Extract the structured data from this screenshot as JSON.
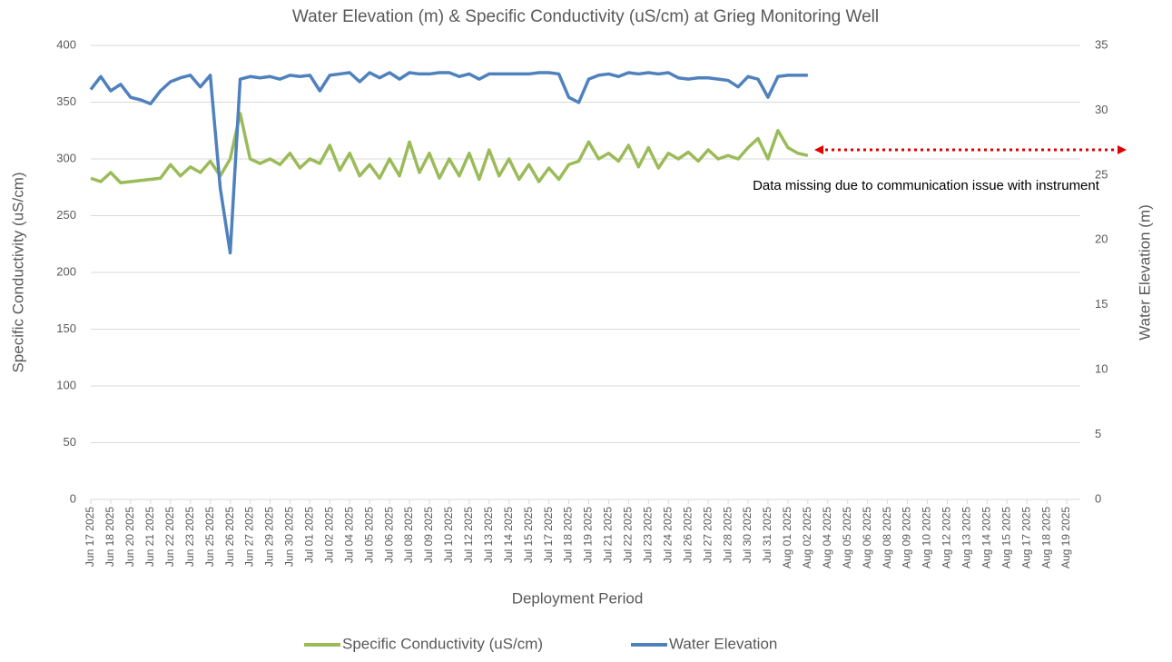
{
  "chart_data": {
    "type": "line",
    "title": "Water Elevation (m) & Specific Conductivity (uS/cm) at Grieg Monitoring Well",
    "x_label": "Deployment Period",
    "y_label": "Specific Conductivity (uS/cm)",
    "y2_label": "Water Elevation (m)",
    "annotation": "Data missing due to communication issue with instrument",
    "categories": [
      "Jun 17 2025",
      null,
      "Jun 18 2025",
      null,
      "Jun 20 2025",
      null,
      "Jun 21 2025",
      null,
      "Jun 22 2025",
      null,
      "Jun 23 2025",
      null,
      "Jun 25 2025",
      null,
      "Jun 26 2025",
      null,
      "Jun 27 2025",
      null,
      "Jun 29 2025",
      null,
      "Jun 30 2025",
      null,
      "Jul 01 2025",
      null,
      "Jul 02 2025",
      null,
      "Jul 04 2025",
      null,
      "Jul 05 2025",
      null,
      "Jul 06 2025",
      null,
      "Jul 08 2025",
      null,
      "Jul 09 2025",
      null,
      "Jul 10 2025",
      null,
      "Jul 12 2025",
      null,
      "Jul 13 2025",
      null,
      "Jul 14 2025",
      null,
      "Jul 15 2025",
      null,
      "Jul 17 2025",
      null,
      "Jul 18 2025",
      null,
      "Jul 19 2025",
      null,
      "Jul 21 2025",
      null,
      "Jul 22 2025",
      null,
      "Jul 23 2025",
      null,
      "Jul 24 2025",
      null,
      "Jul 26 2025",
      null,
      "Jul 27 2025",
      null,
      "Jul 28 2025",
      null,
      "Jul 30 2025",
      null,
      "Jul 31 2025",
      null,
      "Aug 01 2025",
      null,
      "Aug 02 2025",
      null,
      "Aug 04 2025",
      null,
      "Aug 05 2025",
      null,
      "Aug 06 2025",
      null,
      "Aug 08 2025",
      null,
      "Aug 09 2025",
      null,
      "Aug 10 2025",
      null,
      "Aug 12 2025",
      null,
      "Aug 13 2025",
      null,
      "Aug 14 2025",
      null,
      "Aug 15 2025",
      null,
      "Aug 17 2025",
      null,
      "Aug 18 2025",
      null,
      "Aug 19 2025",
      null
    ],
    "series": [
      {
        "name": "Specific Conductivity (uS/cm)",
        "color": "#9bbb59",
        "axis": "y",
        "values": [
          283,
          280,
          288,
          279,
          280,
          281,
          282,
          283,
          295,
          285,
          293,
          288,
          298,
          285,
          300,
          340,
          300,
          296,
          300,
          295,
          305,
          292,
          300,
          296,
          312,
          290,
          305,
          285,
          295,
          283,
          300,
          285,
          315,
          288,
          305,
          283,
          300,
          285,
          305,
          282,
          308,
          285,
          300,
          282,
          295,
          280,
          292,
          282,
          295,
          298,
          315,
          300,
          305,
          298,
          312,
          293,
          310,
          292,
          305,
          300,
          306,
          298,
          308,
          300,
          303,
          300,
          310,
          318,
          300,
          325,
          310,
          305,
          303,
          null,
          null,
          null,
          null,
          null,
          null,
          null,
          null,
          null,
          null,
          null,
          null,
          null,
          null,
          null,
          null,
          null,
          null,
          null,
          null,
          null,
          null,
          null,
          null,
          null,
          null,
          null
        ]
      },
      {
        "name": "Water Elevation",
        "color": "#4f81bd",
        "axis": "y2",
        "values": [
          31.6,
          32.6,
          31.5,
          32.0,
          31.0,
          30.8,
          30.5,
          31.5,
          32.2,
          32.5,
          32.7,
          31.8,
          32.7,
          24,
          19,
          32.4,
          32.6,
          32.5,
          32.6,
          32.4,
          32.7,
          32.6,
          32.7,
          31.5,
          32.7,
          32.8,
          32.9,
          32.2,
          32.9,
          32.5,
          32.9,
          32.4,
          32.9,
          32.8,
          32.8,
          32.9,
          32.9,
          32.6,
          32.8,
          32.4,
          32.8,
          32.8,
          32.8,
          32.8,
          32.8,
          32.9,
          32.9,
          32.8,
          31.0,
          30.6,
          32.4,
          32.7,
          32.8,
          32.6,
          32.9,
          32.8,
          32.9,
          32.8,
          32.9,
          32.5,
          32.4,
          32.5,
          32.5,
          32.4,
          32.3,
          31.8,
          32.6,
          32.4,
          31.0,
          32.6,
          32.7,
          32.7,
          32.7,
          null,
          null,
          null,
          null,
          null,
          null,
          null,
          null,
          null,
          null,
          null,
          null,
          null,
          null,
          null,
          null,
          null,
          null,
          null,
          null,
          null,
          null,
          null,
          null,
          null,
          null,
          null
        ]
      }
    ],
    "ylim": [
      0,
      400
    ],
    "yticks": [
      0,
      50,
      100,
      150,
      200,
      250,
      300,
      350,
      400
    ],
    "y2lim": [
      0,
      35
    ],
    "y2ticks": [
      0,
      5,
      10,
      15,
      20,
      25,
      30,
      35
    ],
    "grid": true,
    "legend": "bottom"
  }
}
